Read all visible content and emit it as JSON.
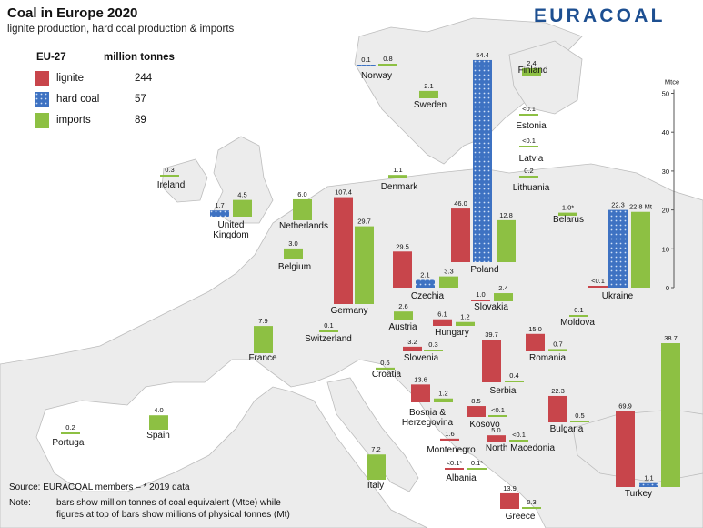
{
  "header": {
    "title": "Coal in Europe 2020",
    "subtitle": "lignite production, hard coal production & imports",
    "brand": "EURACOAL"
  },
  "legend": {
    "region": "EU-27",
    "unit": "million tonnes",
    "items": [
      {
        "label": "lignite",
        "value": "244",
        "color": "#c8454b"
      },
      {
        "label": "hard coal",
        "value": "57",
        "color": "#3e72c2"
      },
      {
        "label": "imports",
        "value": "89",
        "color": "#8dc043"
      }
    ]
  },
  "axis": {
    "label": "Mtce",
    "ticks": [
      "50",
      "40",
      "30",
      "20",
      "10",
      "0"
    ]
  },
  "notes": {
    "source": "Source: EURACOAL members  –  * 2019 data",
    "note_label": "Note:",
    "note_line1": "bars show million tonnes of coal equivalent (Mtce) while",
    "note_line2": "figures at top of bars show millions of physical tonnes (Mt)"
  },
  "chart_data": {
    "type": "bar",
    "title": "Coal in Europe 2020",
    "subtitle": "lignite production, hard coal production & imports",
    "value_unit_bars": "Mtce",
    "value_unit_labels": "Mt",
    "ylim": [
      0,
      50
    ],
    "countries": [
      {
        "name": "Norway",
        "bars": [
          {
            "series": "hard coal",
            "label": "0.1",
            "mtce": 0.1
          },
          {
            "series": "imports",
            "label": "0.8",
            "mtce": 0.7
          }
        ]
      },
      {
        "name": "Finland",
        "bars": [
          {
            "series": "imports",
            "label": "2.4",
            "mtce": 1.9
          }
        ]
      },
      {
        "name": "Sweden",
        "bars": [
          {
            "series": "imports",
            "label": "2.1",
            "mtce": 1.9
          }
        ]
      },
      {
        "name": "Estonia",
        "bars": [
          {
            "series": "imports",
            "label": "<0.1",
            "mtce": 0.05
          }
        ]
      },
      {
        "name": "Latvia",
        "bars": [
          {
            "series": "imports",
            "label": "<0.1",
            "mtce": 0.05
          }
        ]
      },
      {
        "name": "Lithuania",
        "bars": [
          {
            "series": "imports",
            "label": "0.2",
            "mtce": 0.2
          }
        ]
      },
      {
        "name": "Denmark",
        "bars": [
          {
            "series": "imports",
            "label": "1.1",
            "mtce": 0.9
          }
        ]
      },
      {
        "name": "Ireland",
        "bars": [
          {
            "series": "imports",
            "label": "0.3",
            "mtce": 0.3
          }
        ]
      },
      {
        "name": "United Kingdom",
        "bars": [
          {
            "series": "hard coal",
            "label": "1.7",
            "mtce": 1.6
          },
          {
            "series": "imports",
            "label": "4.5",
            "mtce": 4.3
          }
        ]
      },
      {
        "name": "Netherlands",
        "bars": [
          {
            "series": "imports",
            "label": "6.0",
            "mtce": 5.4
          }
        ]
      },
      {
        "name": "Belgium",
        "bars": [
          {
            "series": "imports",
            "label": "3.0",
            "mtce": 2.6
          }
        ]
      },
      {
        "name": "Germany",
        "bars": [
          {
            "series": "lignite",
            "label": "107.4",
            "mtce": 27.5
          },
          {
            "series": "imports",
            "label": "29.7",
            "mtce": 20.0
          }
        ]
      },
      {
        "name": "Poland",
        "bars": [
          {
            "series": "lignite",
            "label": "46.0",
            "mtce": 13.8
          },
          {
            "series": "hard coal",
            "label": "54.4",
            "mtce": 52.0
          },
          {
            "series": "imports",
            "label": "12.8",
            "mtce": 10.8
          }
        ]
      },
      {
        "name": "Czechia",
        "bars": [
          {
            "series": "lignite",
            "label": "29.5",
            "mtce": 9.3
          },
          {
            "series": "hard coal",
            "label": "2.1",
            "mtce": 2.0
          },
          {
            "series": "imports",
            "label": "3.3",
            "mtce": 2.9
          }
        ]
      },
      {
        "name": "Slovakia",
        "bars": [
          {
            "series": "lignite",
            "label": "1.0",
            "mtce": 0.3
          },
          {
            "series": "imports",
            "label": "2.4",
            "mtce": 2.1
          }
        ]
      },
      {
        "name": "Belarus",
        "bars": [
          {
            "series": "imports",
            "label": "1.0*",
            "mtce": 0.8
          }
        ]
      },
      {
        "name": "Ukraine",
        "bars": [
          {
            "series": "lignite",
            "label": "<0.1",
            "mtce": 0.05
          },
          {
            "series": "hard coal",
            "label": "22.3",
            "mtce": 20.0
          },
          {
            "series": "imports",
            "label": "22.8 Mt",
            "mtce": 19.5
          }
        ]
      },
      {
        "name": "Austria",
        "bars": [
          {
            "series": "imports",
            "label": "2.6",
            "mtce": 2.3
          }
        ]
      },
      {
        "name": "Switzerland",
        "bars": [
          {
            "series": "imports",
            "label": "0.1",
            "mtce": 0.1
          }
        ]
      },
      {
        "name": "Hungary",
        "bars": [
          {
            "series": "lignite",
            "label": "6.1",
            "mtce": 1.7
          },
          {
            "series": "imports",
            "label": "1.2",
            "mtce": 1.0
          }
        ]
      },
      {
        "name": "Moldova",
        "bars": [
          {
            "series": "imports",
            "label": "0.1",
            "mtce": 0.1
          }
        ]
      },
      {
        "name": "France",
        "bars": [
          {
            "series": "imports",
            "label": "7.9",
            "mtce": 7.0
          }
        ]
      },
      {
        "name": "Slovenia",
        "bars": [
          {
            "series": "lignite",
            "label": "3.2",
            "mtce": 1.2
          },
          {
            "series": "imports",
            "label": "0.3",
            "mtce": 0.3
          }
        ]
      },
      {
        "name": "Romania",
        "bars": [
          {
            "series": "lignite",
            "label": "15.0",
            "mtce": 4.5
          },
          {
            "series": "imports",
            "label": "0.7",
            "mtce": 0.6
          }
        ]
      },
      {
        "name": "Croatia",
        "bars": [
          {
            "series": "imports",
            "label": "0.6",
            "mtce": 0.5
          }
        ]
      },
      {
        "name": "Serbia",
        "bars": [
          {
            "series": "lignite",
            "label": "39.7",
            "mtce": 11.0
          },
          {
            "series": "imports",
            "label": "0.4",
            "mtce": 0.4
          }
        ]
      },
      {
        "name": "Bosnia & Herzegovina",
        "bars": [
          {
            "series": "lignite",
            "label": "13.6",
            "mtce": 4.6
          },
          {
            "series": "imports",
            "label": "1.2",
            "mtce": 1.0
          }
        ]
      },
      {
        "name": "Kosovo",
        "bars": [
          {
            "series": "lignite",
            "label": "8.5",
            "mtce": 2.8
          },
          {
            "series": "imports",
            "label": "<0.1",
            "mtce": 0.05
          }
        ]
      },
      {
        "name": "Bulgaria",
        "bars": [
          {
            "series": "lignite",
            "label": "22.3",
            "mtce": 6.8
          },
          {
            "series": "imports",
            "label": "0.5",
            "mtce": 0.4
          }
        ]
      },
      {
        "name": "North Macedonia",
        "bars": [
          {
            "series": "lignite",
            "label": "5.0",
            "mtce": 1.6
          },
          {
            "series": "imports",
            "label": "<0.1",
            "mtce": 0.05
          }
        ]
      },
      {
        "name": "Montenegro",
        "bars": [
          {
            "series": "lignite",
            "label": "1.6",
            "mtce": 0.5
          }
        ]
      },
      {
        "name": "Portugal",
        "bars": [
          {
            "series": "imports",
            "label": "0.2",
            "mtce": 0.2
          }
        ]
      },
      {
        "name": "Spain",
        "bars": [
          {
            "series": "imports",
            "label": "4.0",
            "mtce": 3.7
          }
        ]
      },
      {
        "name": "Italy",
        "bars": [
          {
            "series": "imports",
            "label": "7.2",
            "mtce": 6.5
          }
        ]
      },
      {
        "name": "Albania",
        "bars": [
          {
            "series": "lignite",
            "label": "<0.1*",
            "mtce": 0.05
          },
          {
            "series": "imports",
            "label": "0.1*",
            "mtce": 0.1
          }
        ]
      },
      {
        "name": "Greece",
        "bars": [
          {
            "series": "lignite",
            "label": "13.9",
            "mtce": 4.0
          },
          {
            "series": "imports",
            "label": "0.3",
            "mtce": 0.3
          }
        ]
      },
      {
        "name": "Turkey",
        "bars": [
          {
            "series": "lignite",
            "label": "69.9",
            "mtce": 19.5
          },
          {
            "series": "hard coal",
            "label": "1.1",
            "mtce": 1.0
          },
          {
            "series": "imports",
            "label": "38.7",
            "mtce": 37.0
          }
        ]
      }
    ]
  }
}
